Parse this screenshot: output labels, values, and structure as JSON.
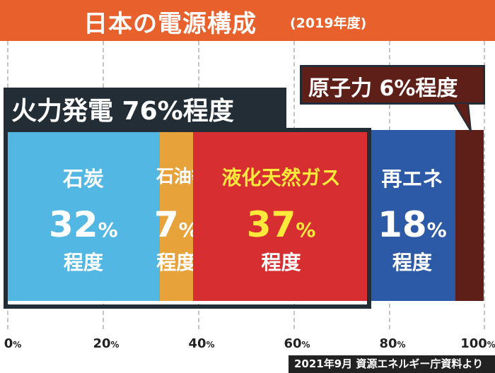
{
  "header": {
    "title": "日本の電源構成",
    "subtitle": "(2019年度)"
  },
  "chart_data": {
    "type": "bar",
    "orientation": "horizontal-stacked",
    "title": "日本の電源構成",
    "subtitle": "(2019年度)",
    "xlim": [
      0,
      100
    ],
    "ticks": [
      "0%",
      "20%",
      "40%",
      "60%",
      "80%",
      "100%"
    ],
    "grid": true,
    "segments": [
      {
        "name": "石炭",
        "value": 32,
        "pct_num": "32",
        "pct_sign": "%",
        "about": "程度",
        "color": "#53b7e3"
      },
      {
        "name": "石油等",
        "value": 7,
        "pct_num": "7",
        "pct_sign": "%",
        "about": "程度",
        "color": "#e8a23a"
      },
      {
        "name": "液化天然ガス",
        "value": 37,
        "pct_num": "37",
        "pct_sign": "%",
        "about": "程度",
        "color": "#d72f31"
      },
      {
        "name": "再エネ",
        "value": 18,
        "pct_num": "18",
        "pct_sign": "%",
        "about": "程度",
        "color": "#2c5aa7"
      },
      {
        "name": "原子力",
        "value": 6,
        "color": "#5e1f18"
      }
    ],
    "groups": {
      "thermal": "火力発電 76%程度",
      "nuclear": "原子力 6%程度"
    }
  },
  "source": "2021年9月 資源エネルギー庁資料より"
}
